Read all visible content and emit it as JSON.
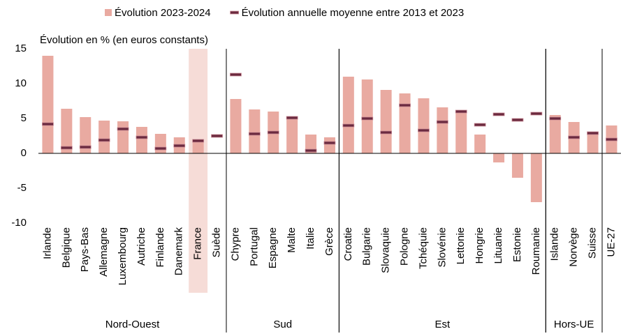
{
  "chart_data": {
    "type": "bar",
    "y_label": "Évolution en % (en euros constants)",
    "categories": [
      "Irlande",
      "Belgique",
      "Pays-Bas",
      "Allemagne",
      "Luxembourg",
      "Autriche",
      "Finlande",
      "Danemark",
      "France",
      "Suède",
      "Chypre",
      "Portugal",
      "Espagne",
      "Malte",
      "Italie",
      "Grèce",
      "Croatie",
      "Bulgarie",
      "Slovaquie",
      "Pologne",
      "Tchéquie",
      "Slovénie",
      "Lettonie",
      "Hongrie",
      "Lituanie",
      "Estonie",
      "Roumanie",
      "Islande",
      "Norvège",
      "Suisse",
      "UE-27"
    ],
    "series": [
      {
        "name": "Évolution 2023-2024",
        "color": "#e9aaa1",
        "kind": "bar",
        "values": [
          14,
          6.4,
          5.2,
          4.7,
          4.6,
          3.8,
          2.8,
          2.3,
          1.9,
          null,
          7.8,
          6.3,
          6.0,
          5.0,
          2.7,
          2.3,
          11.0,
          10.6,
          9.1,
          8.6,
          7.9,
          6.6,
          5.9,
          2.7,
          -1.3,
          -3.5,
          -7.0,
          5.5,
          4.5,
          2.7,
          4.0
        ]
      },
      {
        "name": "Évolution annuelle moyenne entre 2013 et 2023",
        "color": "#6b2a3f",
        "kind": "marker",
        "values": [
          4.2,
          0.8,
          0.9,
          1.9,
          3.5,
          2.3,
          0.7,
          1.1,
          1.8,
          2.5,
          11.3,
          2.8,
          3.0,
          5.1,
          0.4,
          1.5,
          4.0,
          5.0,
          3.0,
          6.9,
          3.3,
          4.5,
          6.0,
          4.1,
          5.6,
          4.8,
          5.7,
          5.0,
          2.3,
          2.9,
          2.0
        ]
      }
    ],
    "groups": [
      {
        "label": "Nord-Ouest",
        "span": 10
      },
      {
        "label": "Sud",
        "span": 6
      },
      {
        "label": "Est",
        "span": 11
      },
      {
        "label": "Hors-UE",
        "span": 3
      }
    ],
    "highlight": "France",
    "ylim": [
      -10,
      15
    ],
    "yticks": [
      -10,
      -5,
      0,
      5,
      10,
      15
    ]
  }
}
